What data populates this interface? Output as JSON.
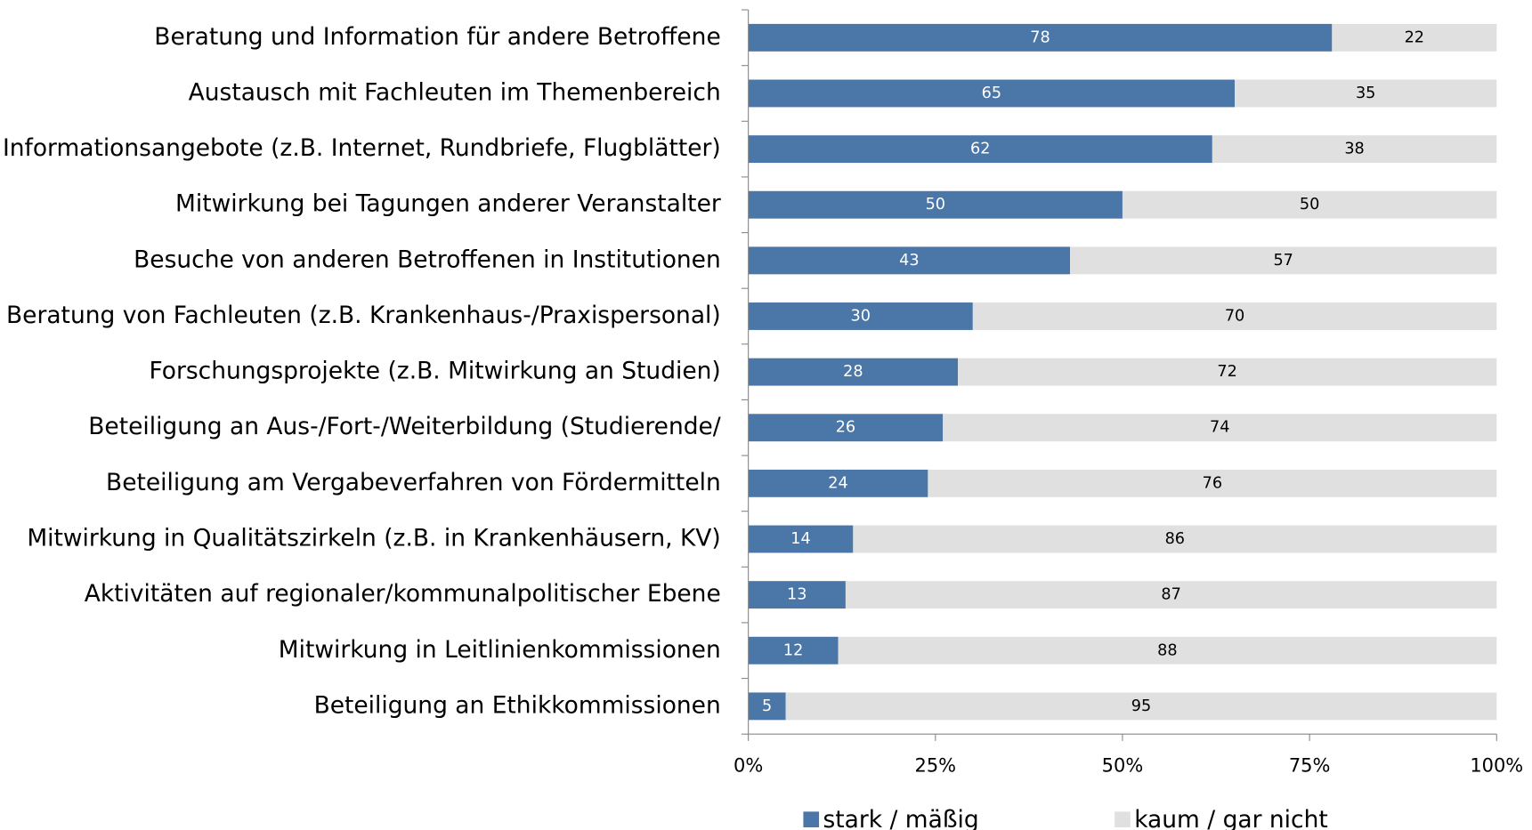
{
  "chart_data": {
    "type": "stacked_bar_horizontal",
    "categories": [
      "Beratung und Information für andere Betroffene",
      "Austausch mit Fachleuten im Themenbereich",
      "Informationsangebote (z.B. Internet, Rundbriefe, Flugblätter)",
      "Mitwirkung bei Tagungen anderer Veranstalter",
      "Besuche von anderen Betroffenen in Institutionen",
      "Beratung von Fachleuten (z.B. Krankenhaus-/Praxispersonal)",
      "Forschungsprojekte (z.B. Mitwirkung an Studien)",
      "Beteiligung an Aus-/Fort-/Weiterbildung  (Studierende/",
      "Beteiligung am Vergabeverfahren von Fördermitteln",
      "Mitwirkung in Qualitätszirkeln (z.B. in Krankenhäusern, KV)",
      "Aktivitäten auf regionaler/kommunalpolitischer Ebene",
      "Mitwirkung in Leitlinienkommissionen",
      "Beteiligung an Ethikkommissionen"
    ],
    "series": [
      {
        "name": "stark / mäßig",
        "color": "#4a76a8",
        "values": [
          78,
          65,
          62,
          50,
          43,
          30,
          28,
          26,
          24,
          14,
          13,
          12,
          5
        ]
      },
      {
        "name": "kaum / gar nicht",
        "color": "#e0e0e0",
        "values": [
          22,
          35,
          38,
          50,
          57,
          70,
          72,
          74,
          76,
          86,
          87,
          88,
          95
        ]
      }
    ],
    "xlim": [
      0,
      100
    ],
    "xticks": [
      {
        "value": 0,
        "label": "0%"
      },
      {
        "value": 25,
        "label": "25%"
      },
      {
        "value": 50,
        "label": "50%"
      },
      {
        "value": 75,
        "label": "75%"
      },
      {
        "value": 100,
        "label": "100%"
      }
    ],
    "legend": "bottom"
  }
}
